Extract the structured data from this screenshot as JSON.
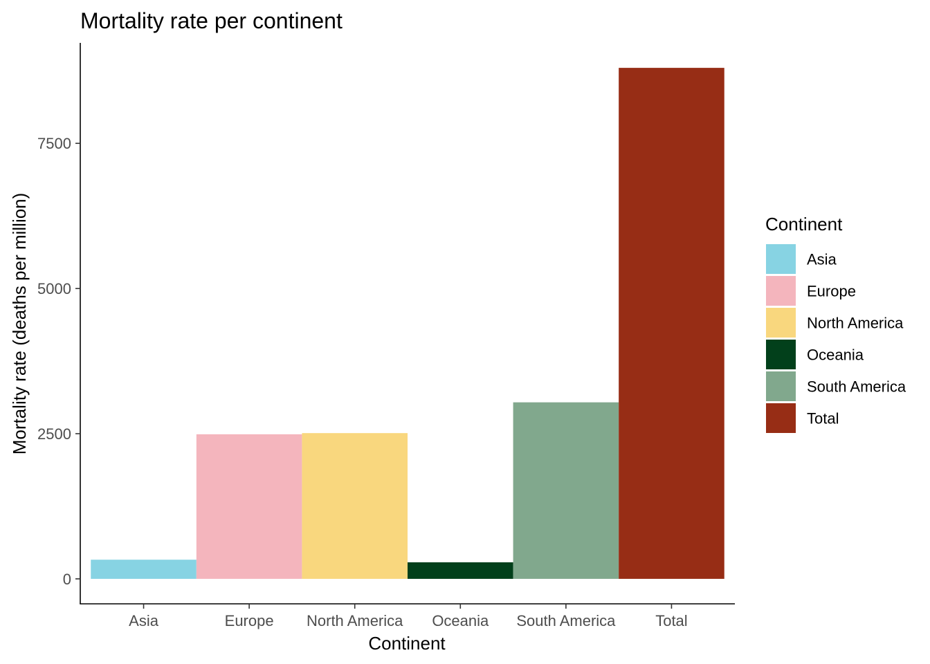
{
  "chart_data": {
    "type": "bar",
    "title": "Mortality rate per continent",
    "xlabel": "Continent",
    "ylabel": "Mortality rate (deaths per million)",
    "categories": [
      "Asia",
      "Europe",
      "North America",
      "Oceania",
      "South America",
      "Total"
    ],
    "values": [
      330,
      2490,
      2510,
      285,
      3040,
      8800
    ],
    "colors": [
      "#87D3E3",
      "#F4B5BD",
      "#F9D77E",
      "#02401B",
      "#81A88D",
      "#972D15"
    ],
    "ylim": [
      -430,
      9230
    ],
    "yticks": [
      0,
      2500,
      5000,
      7500
    ],
    "ytick_labels": [
      "0",
      "2500",
      "5000",
      "7500"
    ],
    "grid": false,
    "legend": {
      "title": "Continent",
      "position": "right",
      "entries": [
        "Asia",
        "Europe",
        "North America",
        "Oceania",
        "South America",
        "Total"
      ]
    }
  }
}
